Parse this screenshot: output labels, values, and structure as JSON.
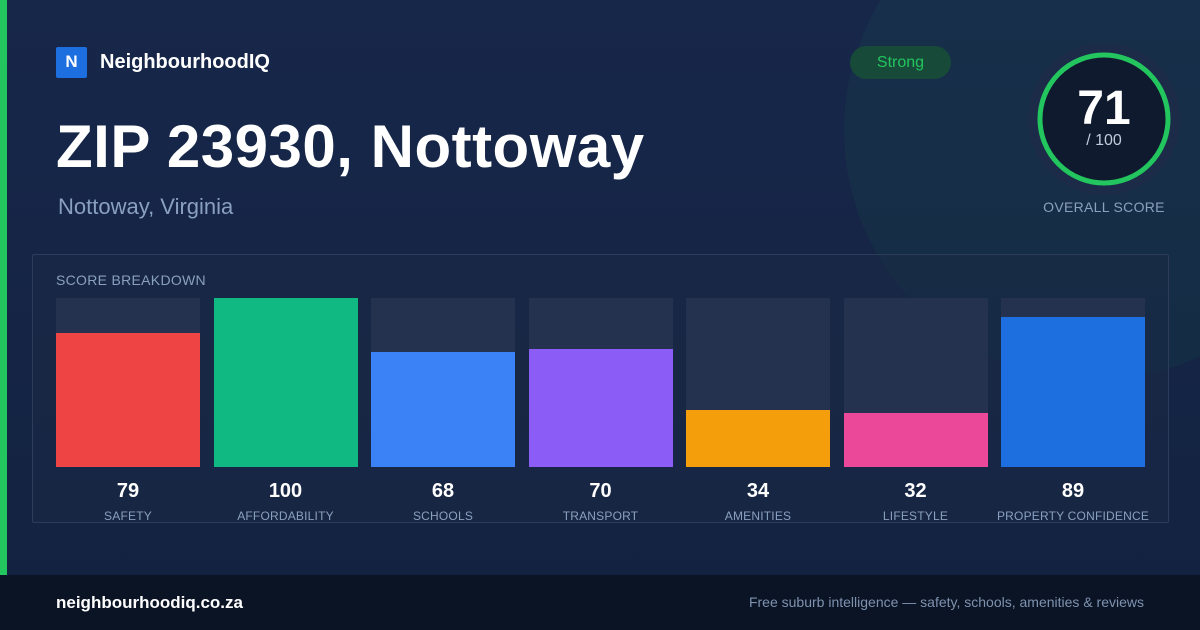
{
  "brand": {
    "logo_letter": "N",
    "name": "NeighbourhoodIQ"
  },
  "location": {
    "title": "ZIP 23930, Nottoway",
    "subtitle": "Nottoway, Virginia"
  },
  "rating_badge": "Strong",
  "overall_score": {
    "value": "71",
    "max_label": "/ 100",
    "label": "OVERALL SCORE",
    "fraction": 0.71
  },
  "breakdown": {
    "heading": "SCORE BREAKDOWN",
    "items": [
      {
        "label": "SAFETY",
        "value": "79",
        "score": 79,
        "color": "#ef4444"
      },
      {
        "label": "AFFORDABILITY",
        "value": "100",
        "score": 100,
        "color": "#10b981"
      },
      {
        "label": "SCHOOLS",
        "value": "68",
        "score": 68,
        "color": "#3b82f6"
      },
      {
        "label": "TRANSPORT",
        "value": "70",
        "score": 70,
        "color": "#8b5cf6"
      },
      {
        "label": "AMENITIES",
        "value": "34",
        "score": 34,
        "color": "#f59e0b"
      },
      {
        "label": "LIFESTYLE",
        "value": "32",
        "score": 32,
        "color": "#ec4899"
      },
      {
        "label": "PROPERTY CONFIDENCE",
        "value": "89",
        "score": 89,
        "color": "#1d6fe0"
      }
    ]
  },
  "colors": {
    "accent": "#22c55e",
    "background": "#152440",
    "footer": "#0b1424"
  },
  "footer": {
    "site": "neighbourhoodiq.co.za",
    "tagline": "Free suburb intelligence — safety, schools, amenities & reviews"
  }
}
